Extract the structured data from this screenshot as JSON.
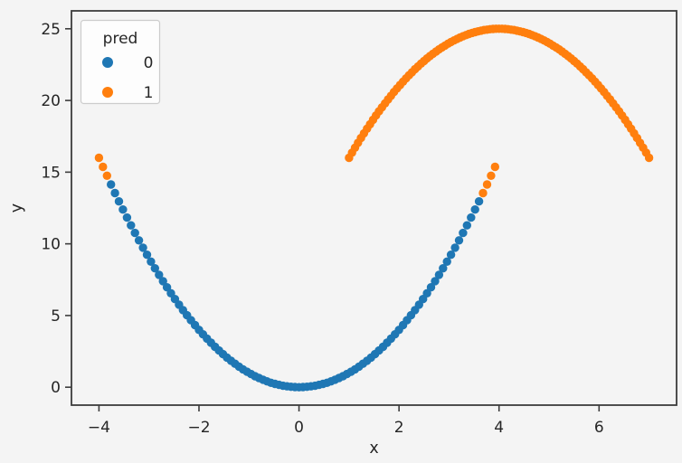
{
  "figure": {
    "background_color": "#f4f4f4",
    "spine_color": "#3c3c3c",
    "text_color": "#262626"
  },
  "chart_data": {
    "type": "scatter",
    "title": "",
    "xlabel": "x",
    "ylabel": "y",
    "xlim": [
      -4.55,
      7.55
    ],
    "ylim": [
      -1.25,
      26.25
    ],
    "grid": false,
    "xticks": {
      "values": [
        -4,
        -2,
        0,
        2,
        4,
        6
      ],
      "labels": [
        "−4",
        "−2",
        "0",
        "2",
        "4",
        "6"
      ]
    },
    "yticks": {
      "values": [
        0,
        5,
        10,
        15,
        20,
        25
      ],
      "labels": [
        "0",
        "5",
        "10",
        "15",
        "20",
        "25"
      ]
    },
    "legend": {
      "title": "pred",
      "position": "upper-left",
      "entries": [
        {
          "label": "0",
          "color": "#1f77b4"
        },
        {
          "label": "1",
          "color": "#ff7f0e"
        }
      ]
    },
    "series": [
      {
        "name": "0",
        "color": "#1f77b4",
        "points": [
          [
            -3.76,
            14.14
          ],
          [
            -3.68,
            13.54
          ],
          [
            -3.6,
            12.96
          ],
          [
            -3.52,
            12.39
          ],
          [
            -3.44,
            11.83
          ],
          [
            -3.36,
            11.29
          ],
          [
            -3.28,
            10.76
          ],
          [
            -3.2,
            10.24
          ],
          [
            -3.12,
            9.73
          ],
          [
            -3.04,
            9.24
          ],
          [
            -2.96,
            8.76
          ],
          [
            -2.88,
            8.29
          ],
          [
            -2.8,
            7.84
          ],
          [
            -2.72,
            7.4
          ],
          [
            -2.64,
            6.97
          ],
          [
            -2.56,
            6.55
          ],
          [
            -2.48,
            6.15
          ],
          [
            -2.4,
            5.76
          ],
          [
            -2.32,
            5.38
          ],
          [
            -2.24,
            5.02
          ],
          [
            -2.16,
            4.67
          ],
          [
            -2.08,
            4.33
          ],
          [
            -2,
            4
          ],
          [
            -1.92,
            3.69
          ],
          [
            -1.84,
            3.39
          ],
          [
            -1.76,
            3.1
          ],
          [
            -1.68,
            2.82
          ],
          [
            -1.6,
            2.56
          ],
          [
            -1.52,
            2.31
          ],
          [
            -1.44,
            2.07
          ],
          [
            -1.36,
            1.85
          ],
          [
            -1.28,
            1.64
          ],
          [
            -1.2,
            1.44
          ],
          [
            -1.12,
            1.25
          ],
          [
            -1.04,
            1.08
          ],
          [
            -0.96,
            0.92
          ],
          [
            -0.88,
            0.77
          ],
          [
            -0.8,
            0.64
          ],
          [
            -0.72,
            0.52
          ],
          [
            -0.64,
            0.41
          ],
          [
            -0.56,
            0.31
          ],
          [
            -0.48,
            0.23
          ],
          [
            -0.4,
            0.16
          ],
          [
            -0.32,
            0.1
          ],
          [
            -0.24,
            0.06
          ],
          [
            -0.16,
            0.03
          ],
          [
            -0.08,
            0.01
          ],
          [
            0,
            0
          ],
          [
            0.08,
            0.01
          ],
          [
            0.16,
            0.03
          ],
          [
            0.24,
            0.06
          ],
          [
            0.32,
            0.1
          ],
          [
            0.4,
            0.16
          ],
          [
            0.48,
            0.23
          ],
          [
            0.56,
            0.31
          ],
          [
            0.64,
            0.41
          ],
          [
            0.72,
            0.52
          ],
          [
            0.8,
            0.64
          ],
          [
            0.88,
            0.77
          ],
          [
            0.96,
            0.92
          ],
          [
            1.04,
            1.08
          ],
          [
            1.12,
            1.25
          ],
          [
            1.2,
            1.44
          ],
          [
            1.28,
            1.64
          ],
          [
            1.36,
            1.85
          ],
          [
            1.44,
            2.07
          ],
          [
            1.52,
            2.31
          ],
          [
            1.6,
            2.56
          ],
          [
            1.68,
            2.82
          ],
          [
            1.76,
            3.1
          ],
          [
            1.84,
            3.39
          ],
          [
            1.92,
            3.69
          ],
          [
            2,
            4
          ],
          [
            2.08,
            4.33
          ],
          [
            2.16,
            4.67
          ],
          [
            2.24,
            5.02
          ],
          [
            2.32,
            5.38
          ],
          [
            2.4,
            5.76
          ],
          [
            2.48,
            6.15
          ],
          [
            2.56,
            6.55
          ],
          [
            2.64,
            6.97
          ],
          [
            2.72,
            7.4
          ],
          [
            2.8,
            7.84
          ],
          [
            2.88,
            8.29
          ],
          [
            2.96,
            8.76
          ],
          [
            3.04,
            9.24
          ],
          [
            3.12,
            9.73
          ],
          [
            3.2,
            10.24
          ],
          [
            3.28,
            10.76
          ],
          [
            3.36,
            11.29
          ],
          [
            3.44,
            11.83
          ],
          [
            3.52,
            12.39
          ],
          [
            3.6,
            12.96
          ]
        ]
      },
      {
        "name": "1",
        "color": "#ff7f0e",
        "points": [
          [
            -4,
            16
          ],
          [
            -3.92,
            15.37
          ],
          [
            -3.84,
            14.75
          ],
          [
            3.68,
            13.54
          ],
          [
            3.76,
            14.14
          ],
          [
            3.84,
            14.75
          ],
          [
            3.92,
            15.37
          ],
          [
            1,
            16
          ],
          [
            1.06,
            16.36
          ],
          [
            1.12,
            16.71
          ],
          [
            1.18,
            17.05
          ],
          [
            1.24,
            17.38
          ],
          [
            1.3,
            17.71
          ],
          [
            1.36,
            18.03
          ],
          [
            1.42,
            18.34
          ],
          [
            1.48,
            18.65
          ],
          [
            1.54,
            18.95
          ],
          [
            1.6,
            19.24
          ],
          [
            1.66,
            19.52
          ],
          [
            1.72,
            19.8
          ],
          [
            1.78,
            20.07
          ],
          [
            1.84,
            20.33
          ],
          [
            1.9,
            20.59
          ],
          [
            1.96,
            20.84
          ],
          [
            2.02,
            21.08
          ],
          [
            2.08,
            21.31
          ],
          [
            2.14,
            21.54
          ],
          [
            2.2,
            21.76
          ],
          [
            2.26,
            21.97
          ],
          [
            2.32,
            22.18
          ],
          [
            2.38,
            22.38
          ],
          [
            2.44,
            22.57
          ],
          [
            2.5,
            22.75
          ],
          [
            2.56,
            22.93
          ],
          [
            2.62,
            23.1
          ],
          [
            2.68,
            23.26
          ],
          [
            2.74,
            23.41
          ],
          [
            2.8,
            23.56
          ],
          [
            2.86,
            23.7
          ],
          [
            2.92,
            23.83
          ],
          [
            2.98,
            23.96
          ],
          [
            3.04,
            24.08
          ],
          [
            3.1,
            24.19
          ],
          [
            3.16,
            24.29
          ],
          [
            3.22,
            24.39
          ],
          [
            3.28,
            24.48
          ],
          [
            3.34,
            24.56
          ],
          [
            3.4,
            24.64
          ],
          [
            3.46,
            24.71
          ],
          [
            3.52,
            24.77
          ],
          [
            3.58,
            24.82
          ],
          [
            3.64,
            24.87
          ],
          [
            3.7,
            24.91
          ],
          [
            3.76,
            24.94
          ],
          [
            3.82,
            24.97
          ],
          [
            3.88,
            24.99
          ],
          [
            3.94,
            25
          ],
          [
            4,
            25
          ],
          [
            4.06,
            25
          ],
          [
            4.12,
            24.99
          ],
          [
            4.18,
            24.97
          ],
          [
            4.24,
            24.94
          ],
          [
            4.3,
            24.91
          ],
          [
            4.36,
            24.87
          ],
          [
            4.42,
            24.82
          ],
          [
            4.48,
            24.77
          ],
          [
            4.54,
            24.71
          ],
          [
            4.6,
            24.64
          ],
          [
            4.66,
            24.56
          ],
          [
            4.72,
            24.48
          ],
          [
            4.78,
            24.39
          ],
          [
            4.84,
            24.29
          ],
          [
            4.9,
            24.19
          ],
          [
            4.96,
            24.08
          ],
          [
            5.02,
            23.96
          ],
          [
            5.08,
            23.83
          ],
          [
            5.14,
            23.7
          ],
          [
            5.2,
            23.56
          ],
          [
            5.26,
            23.41
          ],
          [
            5.32,
            23.26
          ],
          [
            5.38,
            23.1
          ],
          [
            5.44,
            22.93
          ],
          [
            5.5,
            22.75
          ],
          [
            5.56,
            22.57
          ],
          [
            5.62,
            22.38
          ],
          [
            5.68,
            22.18
          ],
          [
            5.74,
            21.97
          ],
          [
            5.8,
            21.76
          ],
          [
            5.86,
            21.54
          ],
          [
            5.92,
            21.31
          ],
          [
            5.98,
            21.08
          ],
          [
            6.04,
            20.84
          ],
          [
            6.1,
            20.59
          ],
          [
            6.16,
            20.33
          ],
          [
            6.22,
            20.07
          ],
          [
            6.28,
            19.8
          ],
          [
            6.34,
            19.52
          ],
          [
            6.4,
            19.24
          ],
          [
            6.46,
            18.95
          ],
          [
            6.52,
            18.65
          ],
          [
            6.58,
            18.34
          ],
          [
            6.64,
            18.03
          ],
          [
            6.7,
            17.71
          ],
          [
            6.76,
            17.38
          ],
          [
            6.82,
            17.05
          ],
          [
            6.88,
            16.71
          ],
          [
            6.94,
            16.36
          ],
          [
            7,
            16
          ]
        ]
      }
    ]
  }
}
